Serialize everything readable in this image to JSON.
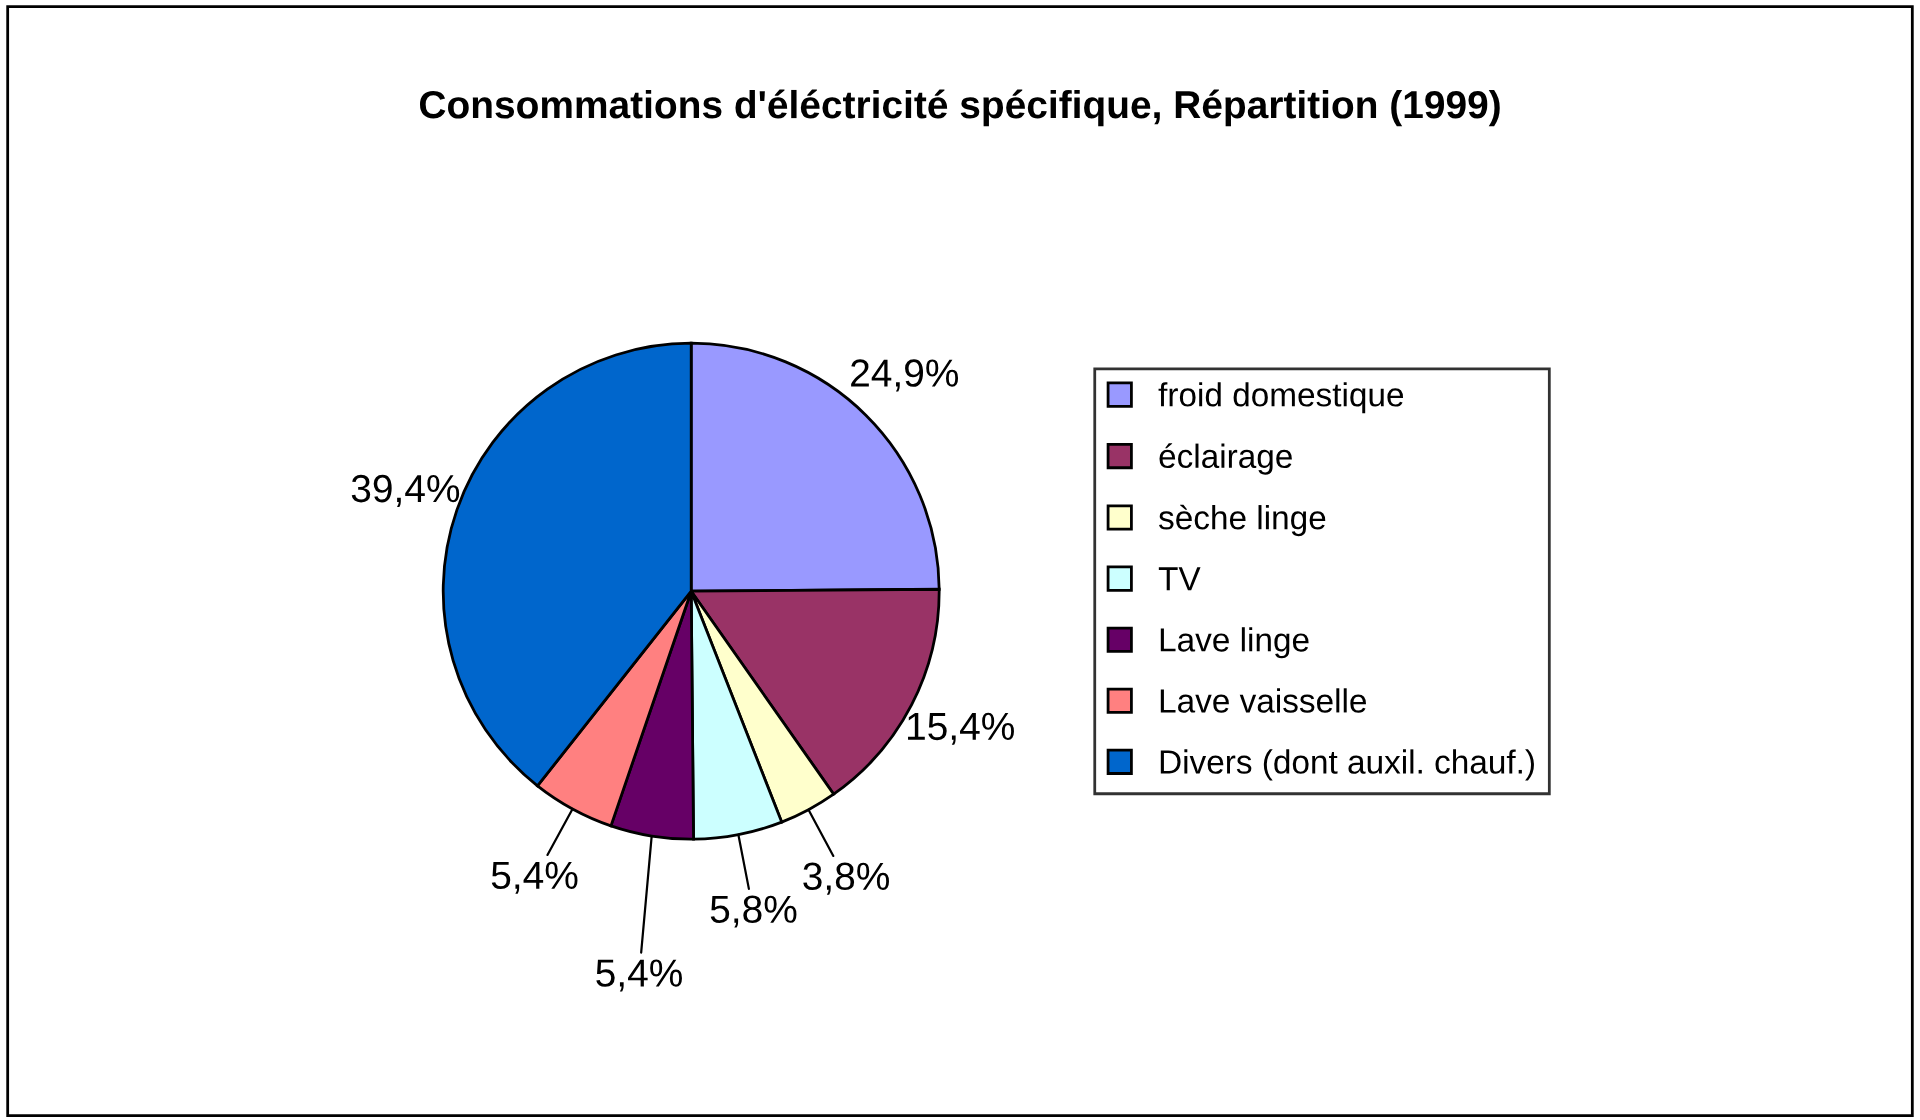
{
  "chart_data": {
    "type": "pie",
    "title": "Consommations d'éléctricité spécifique, Répartition (1999)",
    "categories": [
      "froid domestique",
      "éclairage",
      "sèche linge",
      "TV",
      "Lave linge",
      "Lave vaisselle",
      "Divers (dont auxil. chauf.)"
    ],
    "values": [
      24.9,
      15.4,
      3.8,
      5.8,
      5.4,
      5.4,
      39.4
    ],
    "colors": [
      "#9999ff",
      "#993366",
      "#ffffcc",
      "#ccffff",
      "#660066",
      "#ff8080",
      "#0066cc"
    ],
    "value_labels": [
      "24,9%",
      "15,4%",
      "3,8%",
      "5,8%",
      "5,4%",
      "5,4%",
      "39,4%"
    ],
    "legend": "right"
  }
}
